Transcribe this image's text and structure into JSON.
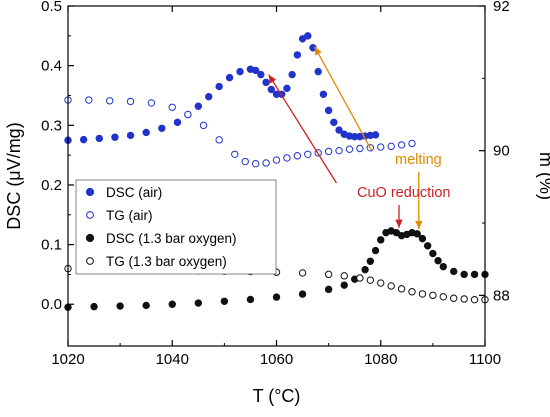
{
  "chart_data": {
    "type": "scatter",
    "xlabel": "T (°C)",
    "ylabel_left": "DSC (μV/mg)",
    "ylabel_right": "m (%)",
    "xlim": [
      1020,
      1100
    ],
    "ylim_left": [
      -0.07,
      0.5
    ],
    "ylim_right": [
      87.3,
      92
    ],
    "x_ticks": [
      "1020",
      "1040",
      "1060",
      "1080",
      "1100"
    ],
    "y_left_ticks": [
      "0.0",
      "0.1",
      "0.2",
      "0.3",
      "0.4",
      "0.5"
    ],
    "y_right_ticks": [
      "88",
      "90",
      "92"
    ],
    "legend_position": "middle-left",
    "series": [
      {
        "name": "DSC (air)",
        "axis": "left",
        "marker": "filled",
        "color": "#2233cc",
        "x": [
          1020,
          1023,
          1026,
          1029,
          1032,
          1035,
          1038,
          1041,
          1043,
          1045,
          1047,
          1049,
          1051,
          1053,
          1055,
          1056,
          1057,
          1058,
          1059,
          1060,
          1061,
          1062,
          1063,
          1064,
          1065,
          1066,
          1067,
          1068,
          1069,
          1070,
          1071,
          1072,
          1073,
          1074,
          1075,
          1076,
          1077,
          1078,
          1079
        ],
        "values": [
          0.275,
          0.276,
          0.278,
          0.28,
          0.283,
          0.288,
          0.295,
          0.305,
          0.318,
          0.332,
          0.348,
          0.365,
          0.38,
          0.39,
          0.394,
          0.392,
          0.385,
          0.372,
          0.36,
          0.352,
          0.352,
          0.362,
          0.385,
          0.418,
          0.445,
          0.45,
          0.43,
          0.39,
          0.352,
          0.325,
          0.305,
          0.292,
          0.285,
          0.282,
          0.281,
          0.281,
          0.282,
          0.283,
          0.284
        ]
      },
      {
        "name": "TG (air)",
        "axis": "right",
        "marker": "open",
        "color": "#2233cc",
        "x": [
          1020,
          1024,
          1028,
          1032,
          1036,
          1040,
          1043,
          1046,
          1049,
          1052,
          1054,
          1056,
          1058,
          1060,
          1062,
          1064,
          1066,
          1068,
          1070,
          1072,
          1074,
          1076,
          1078,
          1080,
          1082,
          1084,
          1086
        ],
        "values": [
          90.7,
          90.7,
          90.69,
          90.68,
          90.66,
          90.6,
          90.5,
          90.35,
          90.15,
          89.95,
          89.85,
          89.82,
          89.83,
          89.87,
          89.9,
          89.93,
          89.95,
          89.97,
          89.99,
          90.0,
          90.02,
          90.03,
          90.04,
          90.05,
          90.06,
          90.08,
          90.1
        ]
      },
      {
        "name": "DSC (1.3 bar oxygen)",
        "axis": "left",
        "marker": "filled",
        "color": "#111111",
        "x": [
          1020,
          1025,
          1030,
          1035,
          1040,
          1045,
          1050,
          1055,
          1060,
          1065,
          1070,
          1073,
          1075,
          1077,
          1078,
          1079,
          1080,
          1081,
          1082,
          1083,
          1084,
          1085,
          1086,
          1087,
          1088,
          1089,
          1090,
          1091,
          1092,
          1094,
          1096,
          1098,
          1100
        ],
        "values": [
          -0.005,
          -0.004,
          -0.003,
          -0.002,
          0.0,
          0.002,
          0.005,
          0.008,
          0.012,
          0.017,
          0.025,
          0.032,
          0.042,
          0.058,
          0.072,
          0.09,
          0.108,
          0.12,
          0.123,
          0.12,
          0.115,
          0.117,
          0.12,
          0.118,
          0.11,
          0.098,
          0.085,
          0.073,
          0.063,
          0.055,
          0.05,
          0.05,
          0.05
        ]
      },
      {
        "name": "TG (1.3 bar oxygen)",
        "axis": "right",
        "marker": "open",
        "color": "#111111",
        "x": [
          1020,
          1025,
          1030,
          1035,
          1040,
          1045,
          1050,
          1055,
          1060,
          1065,
          1070,
          1073,
          1076,
          1078,
          1080,
          1082,
          1084,
          1086,
          1088,
          1090,
          1092,
          1094,
          1096,
          1098,
          1100
        ],
        "values": [
          88.37,
          88.36,
          88.355,
          88.35,
          88.345,
          88.34,
          88.335,
          88.33,
          88.32,
          88.31,
          88.29,
          88.27,
          88.24,
          88.21,
          88.17,
          88.13,
          88.09,
          88.05,
          88.02,
          88.0,
          87.98,
          87.96,
          87.95,
          87.94,
          87.94
        ]
      }
    ],
    "annotations": [
      {
        "text": "CuO reduction",
        "color": "#cc2222"
      },
      {
        "text": "melting",
        "color": "#e08a00"
      }
    ]
  }
}
